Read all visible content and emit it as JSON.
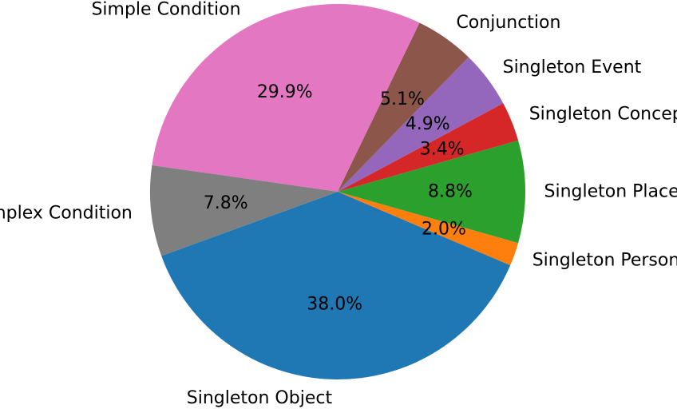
{
  "chart_data": {
    "type": "pie",
    "title": "",
    "start_angle_deg": 200,
    "direction": "counterclockwise",
    "slices": [
      {
        "label": "Singleton Object",
        "value": 38.0,
        "pct_label": "38.0%",
        "color": "#1f77b4"
      },
      {
        "label": "Singleton Person",
        "value": 2.0,
        "pct_label": "2.0%",
        "color": "#ff7f0e"
      },
      {
        "label": "Singleton Place",
        "value": 8.8,
        "pct_label": "8.8%",
        "color": "#2ca02c"
      },
      {
        "label": "Singleton Concept",
        "value": 3.4,
        "pct_label": "3.4%",
        "color": "#d62728"
      },
      {
        "label": "Singleton Event",
        "value": 4.9,
        "pct_label": "4.9%",
        "color": "#9467bd"
      },
      {
        "label": "Conjunction",
        "value": 5.1,
        "pct_label": "5.1%",
        "color": "#8c564b"
      },
      {
        "label": "Simple Condition",
        "value": 29.9,
        "pct_label": "29.9%",
        "color": "#e377c2"
      },
      {
        "label": "Complex Condition",
        "value": 7.8,
        "pct_label": "7.8%",
        "color": "#7f7f7f"
      }
    ]
  }
}
